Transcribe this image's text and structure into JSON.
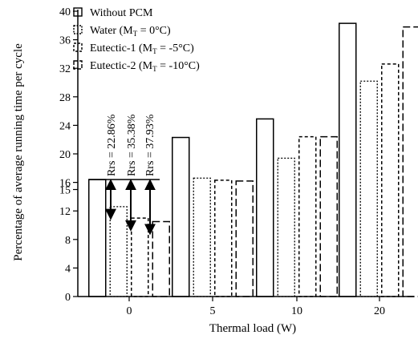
{
  "chart_data": {
    "type": "bar",
    "xlabel": "Thermal load (W)",
    "ylabel": "Percentage of average running time per cycle",
    "categories": [
      "0",
      "5",
      "10",
      "20"
    ],
    "y_ticks": [
      "0",
      "4",
      "8",
      "12",
      "15",
      "16",
      "20",
      "24",
      "28",
      "32",
      "36",
      "40"
    ],
    "ylim": [
      0,
      40
    ],
    "grid": false,
    "legend_position": "top-left",
    "series": [
      {
        "name": "Without PCM",
        "subscript": "",
        "legend_suffix": "",
        "values": [
          16.4,
          22.3,
          24.9,
          38.3
        ],
        "dash": "",
        "stroke_width": 1.5
      },
      {
        "name": "Water (M",
        "subscript": "T",
        "legend_suffix": " = 0°C)",
        "values": [
          12.6,
          16.6,
          19.4,
          30.2
        ],
        "dash": "2,2",
        "stroke_width": 1.3
      },
      {
        "name": "Eutectic-1 (M",
        "subscript": "T",
        "legend_suffix": " = -5°C)",
        "values": [
          11.0,
          16.3,
          22.4,
          32.6
        ],
        "dash": "4,3",
        "stroke_width": 1.5
      },
      {
        "name": "Eutectic-2 (M",
        "subscript": "T",
        "legend_suffix": " = -10°C)",
        "values": [
          10.5,
          16.2,
          22.4,
          37.8
        ],
        "dash": "9,4",
        "stroke_width": 1.5
      }
    ],
    "annotations": [
      {
        "text": "Rrs = 22.86%",
        "series_index": 1,
        "bottom_value": 12.6
      },
      {
        "text": "Rrs = 35.38%",
        "series_index": 2,
        "bottom_value": 11.0
      },
      {
        "text": "Rrs = 37.93%",
        "series_index": 3,
        "bottom_value": 10.5
      }
    ],
    "reference_value": 16.4
  }
}
